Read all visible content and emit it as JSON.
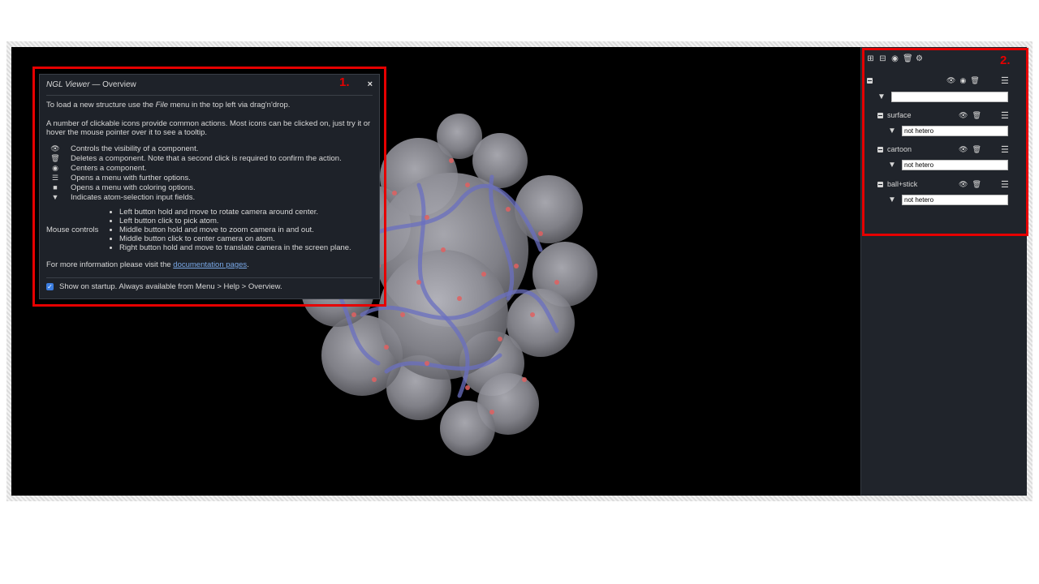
{
  "overview": {
    "title_app": "NGL Viewer",
    "title_rest": " — Overview",
    "close_symbol": "×",
    "intro_pre": "To load a new structure use the ",
    "intro_file": "File",
    "intro_post": " menu in the top left via drag'n'drop.",
    "icons_intro": "A number of clickable icons provide common actions. Most icons can be clicked on, just try it or hover the mouse pointer over it to see a tooltip.",
    "icon_help": [
      "Controls the visibility of a component.",
      "Deletes a component. Note that a second click is required to confirm the action.",
      "Centers a component.",
      "Opens a menu with further options.",
      "Opens a menu with coloring options.",
      "Indicates atom-selection input fields."
    ],
    "mouse_label": "Mouse controls",
    "mouse_items": [
      "Left button hold and move to rotate camera around center.",
      "Left button click to pick atom.",
      "Middle button hold and move to zoom camera in and out.",
      "Middle button click to center camera on atom.",
      "Right button hold and move to translate camera in the screen plane."
    ],
    "more_info_pre": "For more information please visit the ",
    "doc_link": "documentation pages",
    "more_info_post": ".",
    "startup_checked": true,
    "startup_text": "Show on startup. Always available from Menu > Help > Overview."
  },
  "annotations": {
    "box1": "1.",
    "box2": "2."
  },
  "side_panel": {
    "component_filter_value": "",
    "representations": [
      {
        "name": "surface",
        "selection": "not hetero"
      },
      {
        "name": "cartoon",
        "selection": "not hetero"
      },
      {
        "name": "ball+stick",
        "selection": "not hetero"
      }
    ]
  },
  "colors": {
    "annotation_red": "#e60000",
    "panel_bg": "#20242b",
    "dialog_bg": "#1e2229",
    "link": "#7aa9e8",
    "checkbox": "#3b7de0"
  }
}
